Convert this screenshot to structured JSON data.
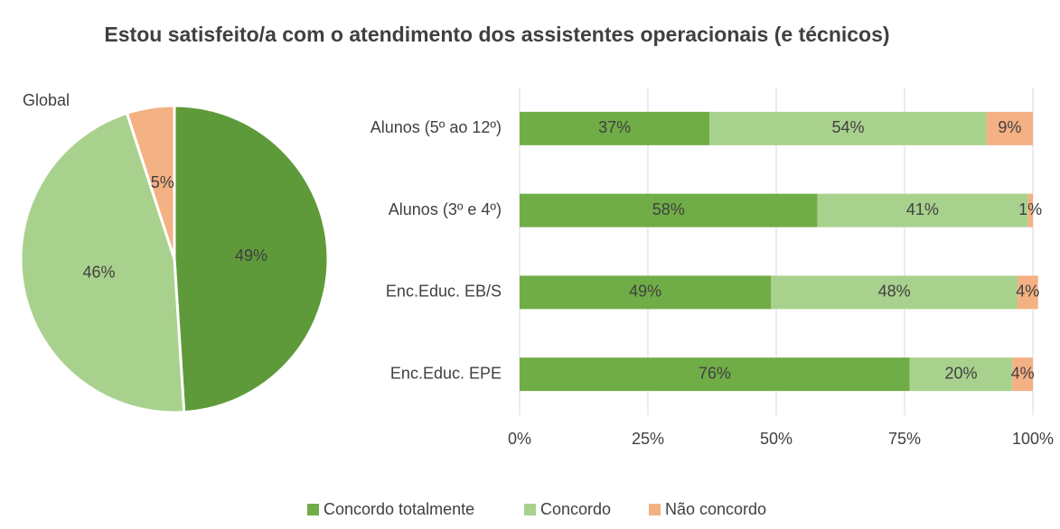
{
  "title": "Estou satisfeito/a com o atendimento dos assistentes operacionais (e técnicos)",
  "chart_data": [
    {
      "type": "pie",
      "title": "Global",
      "categories": [
        "Concordo totalmente",
        "Concordo",
        "Não concordo"
      ],
      "values": [
        49,
        46,
        5
      ],
      "value_labels": [
        "49%",
        "46%",
        "5%"
      ],
      "colors": [
        "#5e9a3a",
        "#a9d18e",
        "#f4b183"
      ]
    },
    {
      "type": "bar",
      "orientation": "horizontal",
      "stacked": true,
      "categories": [
        "Alunos (5º ao 12º)",
        "Alunos (3º e 4º)",
        "Enc.Educ. EB/S",
        "Enc.Educ. EPE"
      ],
      "series": [
        {
          "name": "Concordo totalmente",
          "color": "#70ad47",
          "values": [
            37,
            58,
            49,
            76
          ],
          "value_labels": [
            "37%",
            "58%",
            "49%",
            "76%"
          ]
        },
        {
          "name": "Concordo",
          "color": "#a9d18e",
          "values": [
            54,
            41,
            48,
            20
          ],
          "value_labels": [
            "54%",
            "41%",
            "48%",
            "20%"
          ]
        },
        {
          "name": "Não concordo",
          "color": "#f4b183",
          "values": [
            9,
            1,
            4,
            4
          ],
          "value_labels": [
            "9%",
            "1%",
            "4%",
            "4%"
          ]
        }
      ],
      "xlim": [
        0,
        100
      ],
      "xticks": [
        {
          "value": 0,
          "label": "0%"
        },
        {
          "value": 25,
          "label": "25%"
        },
        {
          "value": 50,
          "label": "50%"
        },
        {
          "value": 75,
          "label": "75%"
        },
        {
          "value": 100,
          "label": "100%"
        }
      ],
      "grid": true,
      "legend": "bottom"
    }
  ]
}
